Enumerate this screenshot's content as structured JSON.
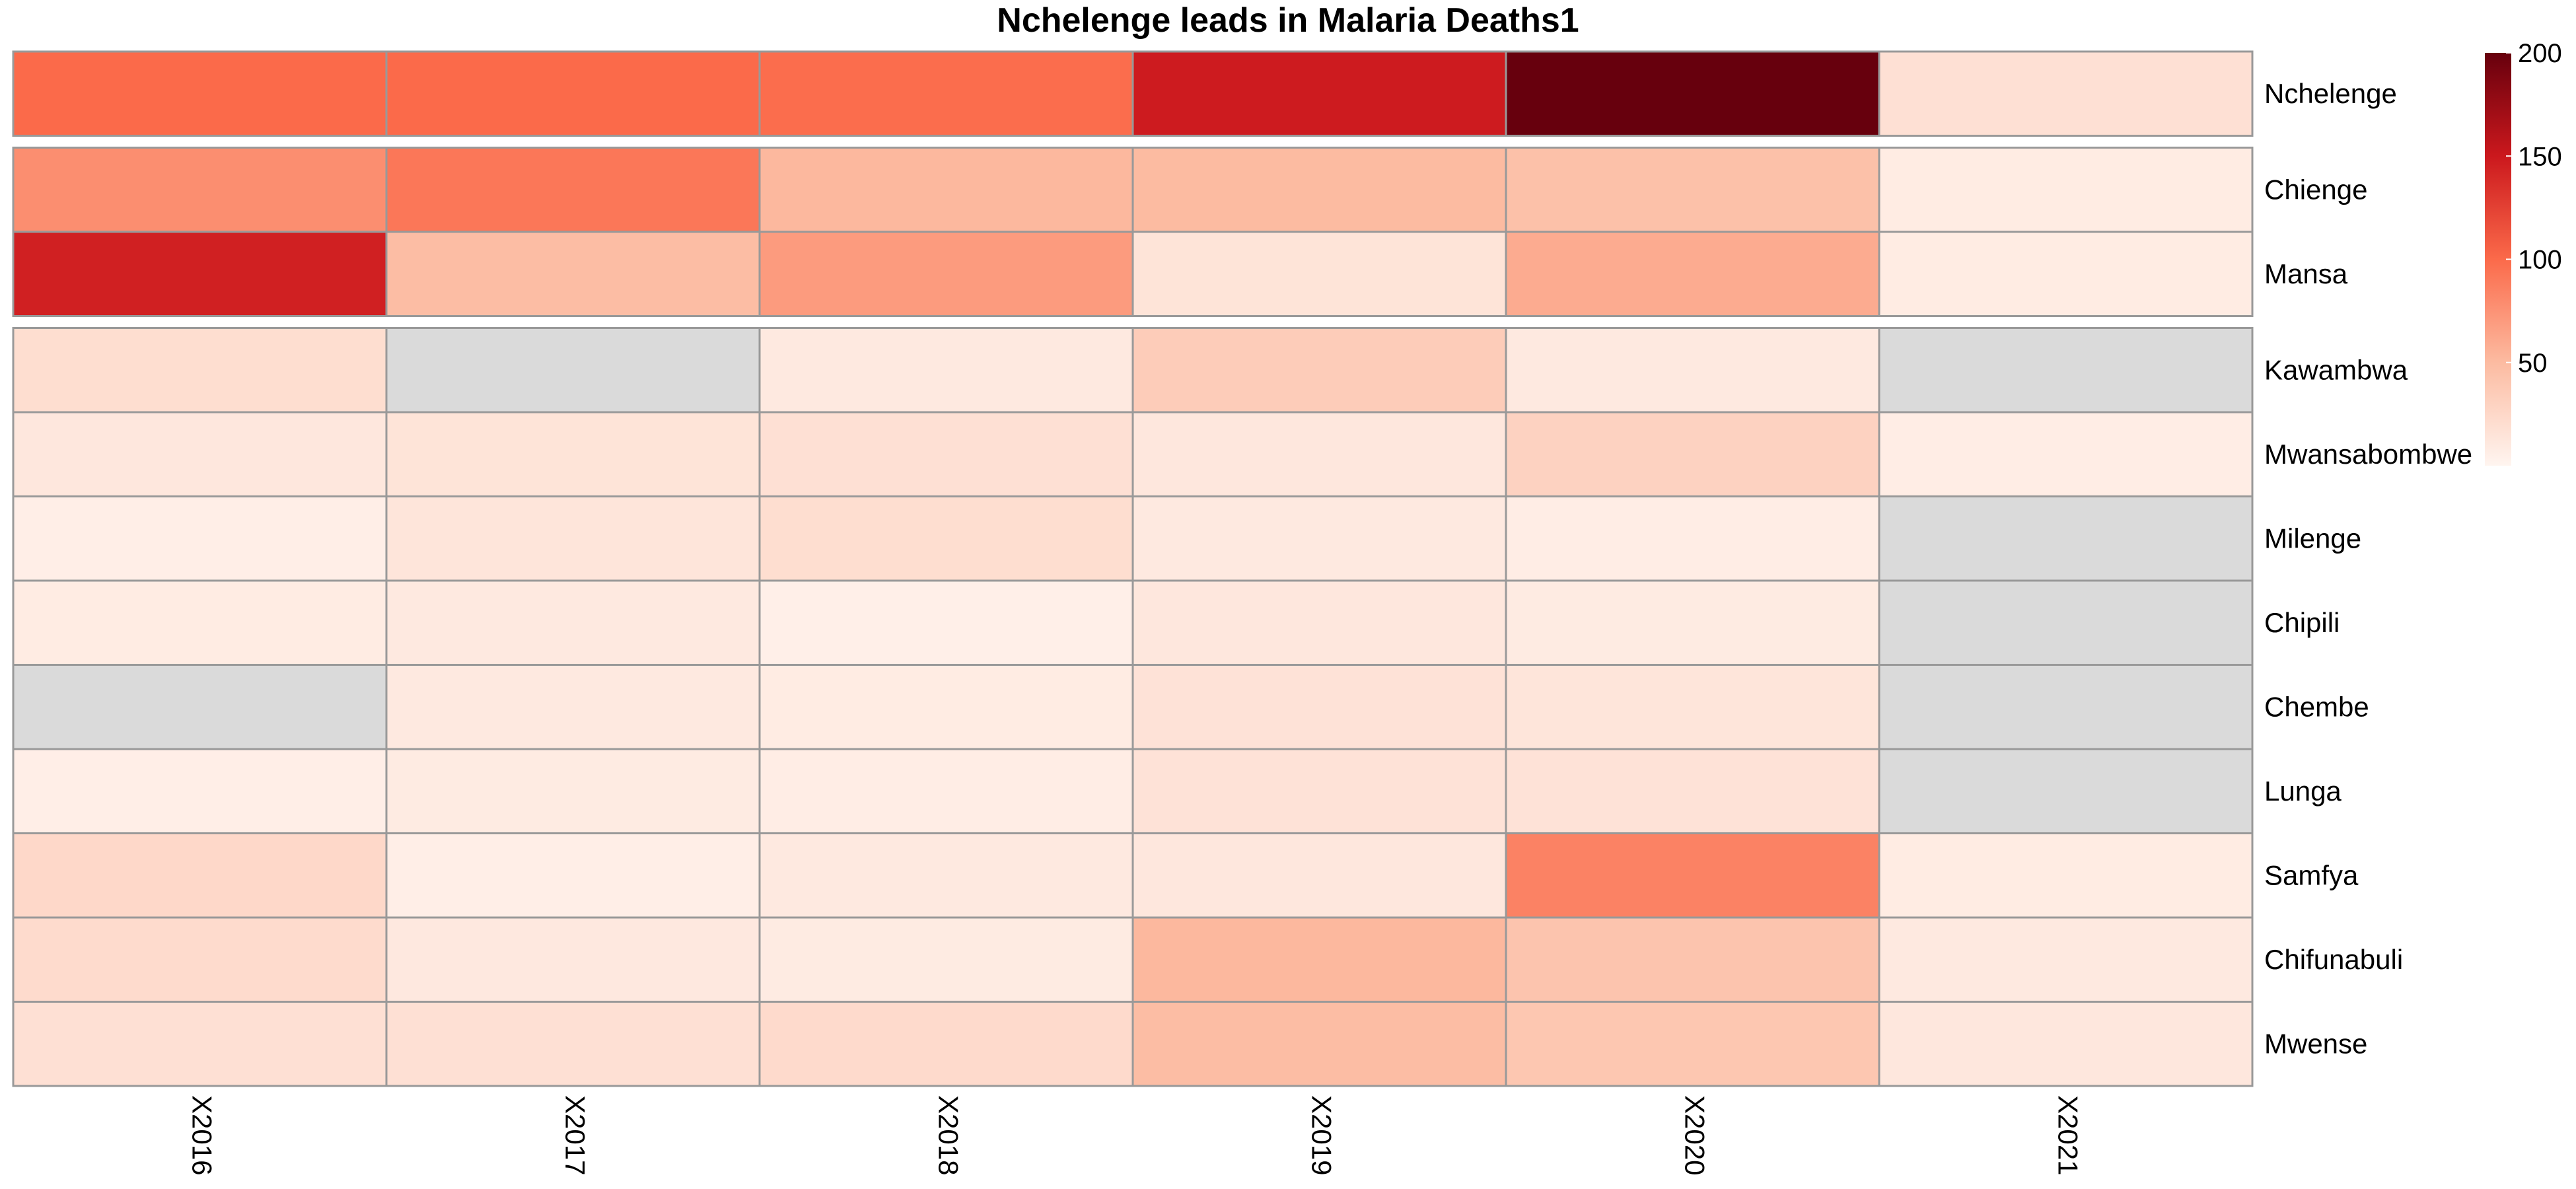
{
  "chart_data": {
    "type": "heatmap",
    "title": "Nchelenge leads in Malaria Deaths1",
    "columns": [
      "X2016",
      "X2017",
      "X2018",
      "X2019",
      "X2020",
      "X2021"
    ],
    "rows": [
      "Nchelenge",
      "Chienge",
      "Mansa",
      "Kawambwa",
      "Mwansabombwe",
      "Milenge",
      "Chipili",
      "Chembe",
      "Lunga",
      "Samfya",
      "Chifunabuli",
      "Mwense"
    ],
    "row_groups": [
      [
        "Nchelenge"
      ],
      [
        "Chienge",
        "Mansa"
      ],
      [
        "Kawambwa",
        "Mwansabombwe",
        "Milenge",
        "Chipili",
        "Chembe",
        "Lunga",
        "Samfya",
        "Chifunabuli",
        "Mwense"
      ]
    ],
    "values": [
      [
        100,
        100,
        98,
        148,
        200,
        18
      ],
      [
        78,
        92,
        52,
        50,
        45,
        8
      ],
      [
        145,
        48,
        70,
        15,
        60,
        8
      ],
      [
        20,
        null,
        10,
        35,
        10,
        null
      ],
      [
        12,
        15,
        18,
        12,
        30,
        7
      ],
      [
        6,
        14,
        20,
        10,
        7,
        null
      ],
      [
        8,
        10,
        5,
        12,
        9,
        null
      ],
      [
        null,
        10,
        8,
        16,
        14,
        null
      ],
      [
        6,
        9,
        7,
        16,
        16,
        null
      ],
      [
        25,
        6,
        10,
        12,
        85,
        8
      ],
      [
        22,
        11,
        9,
        52,
        42,
        10
      ],
      [
        18,
        18,
        23,
        48,
        40,
        12
      ]
    ],
    "value_range": [
      0,
      200
    ],
    "legend": {
      "position": "right",
      "ticks": [
        50,
        100,
        150,
        200
      ]
    },
    "colors": {
      "low": "#FFF5F0",
      "high": "#67000D",
      "missing": "#DADADA",
      "border": "#999999"
    }
  }
}
